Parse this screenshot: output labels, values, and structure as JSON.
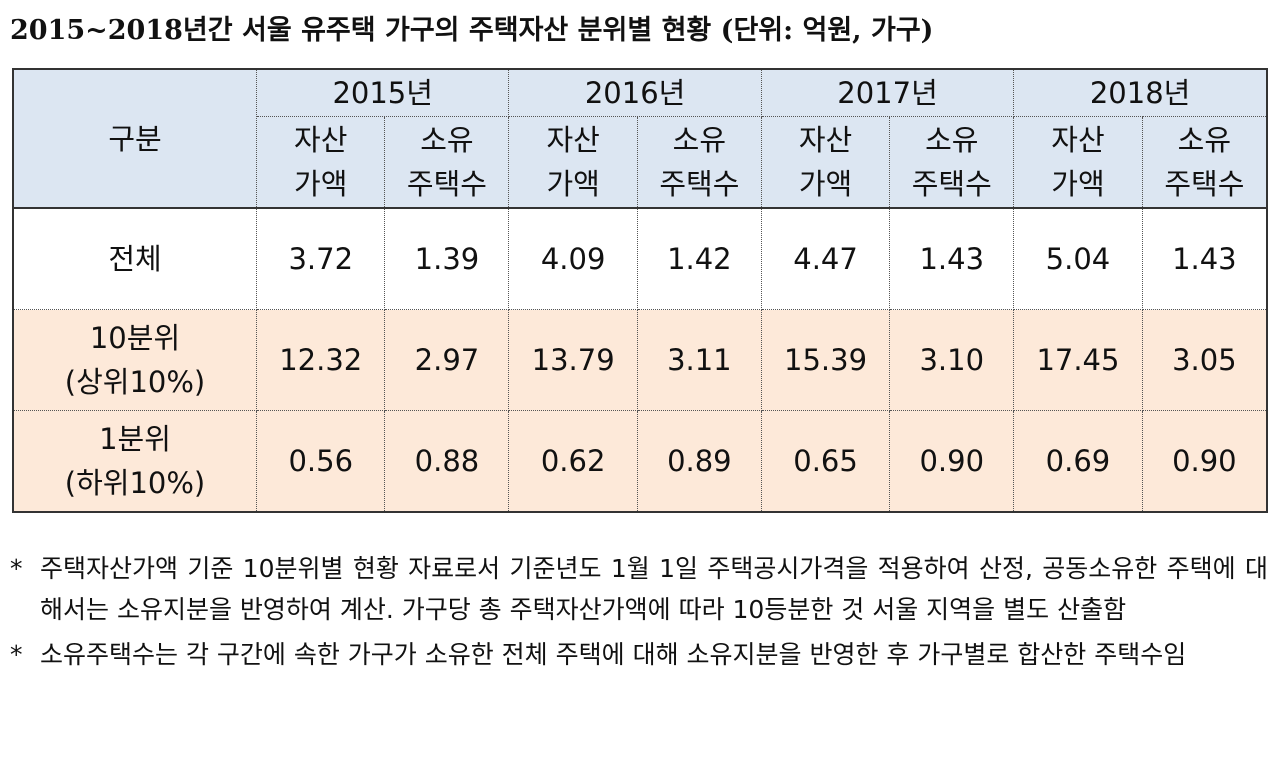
{
  "title": "2015~2018년간 서울 유주택 가구의 주택자산 분위별 현황 (단위: 억원, 가구)",
  "table": {
    "corner": "구분",
    "years": [
      "2015년",
      "2016년",
      "2017년",
      "2018년"
    ],
    "columns": [
      [
        "자산",
        "가액"
      ],
      [
        "소유",
        "주택수"
      ],
      [
        "자산",
        "가액"
      ],
      [
        "소유",
        "주택수"
      ],
      [
        "자산",
        "가액"
      ],
      [
        "소유",
        "주택수"
      ],
      [
        "자산",
        "가액"
      ],
      [
        "소유",
        "주택수"
      ]
    ],
    "rows": [
      {
        "label": [
          "전체"
        ],
        "cells": [
          "3.72",
          "1.39",
          "4.09",
          "1.42",
          "4.47",
          "1.43",
          "5.04",
          "1.43"
        ]
      },
      {
        "label": [
          "10분위",
          "(상위10%)"
        ],
        "cells": [
          "12.32",
          "2.97",
          "13.79",
          "3.11",
          "15.39",
          "3.10",
          "17.45",
          "3.05"
        ]
      },
      {
        "label": [
          "1분위",
          "(하위10%)"
        ],
        "cells": [
          "0.56",
          "0.88",
          "0.62",
          "0.89",
          "0.65",
          "0.90",
          "0.69",
          "0.90"
        ]
      }
    ]
  },
  "notes": [
    {
      "marker": "*",
      "text": "주택자산가액 기준 10분위별 현황 자료로서 기준년도 1월 1일 주택공시가격을 적용하여 산정, 공동소유한 주택에 대해서는 소유지분을 반영하여 계산. 가구당 총 주택자산가액에 따라 10등분한 것 서울 지역을 별도 산출함"
    },
    {
      "marker": "*",
      "text": "소유주택수는 각 구간에 속한 가구가 소유한 전체 주택에 대해 소유지분을 반영한 후 가구별로 합산한 주택수임"
    }
  ]
}
